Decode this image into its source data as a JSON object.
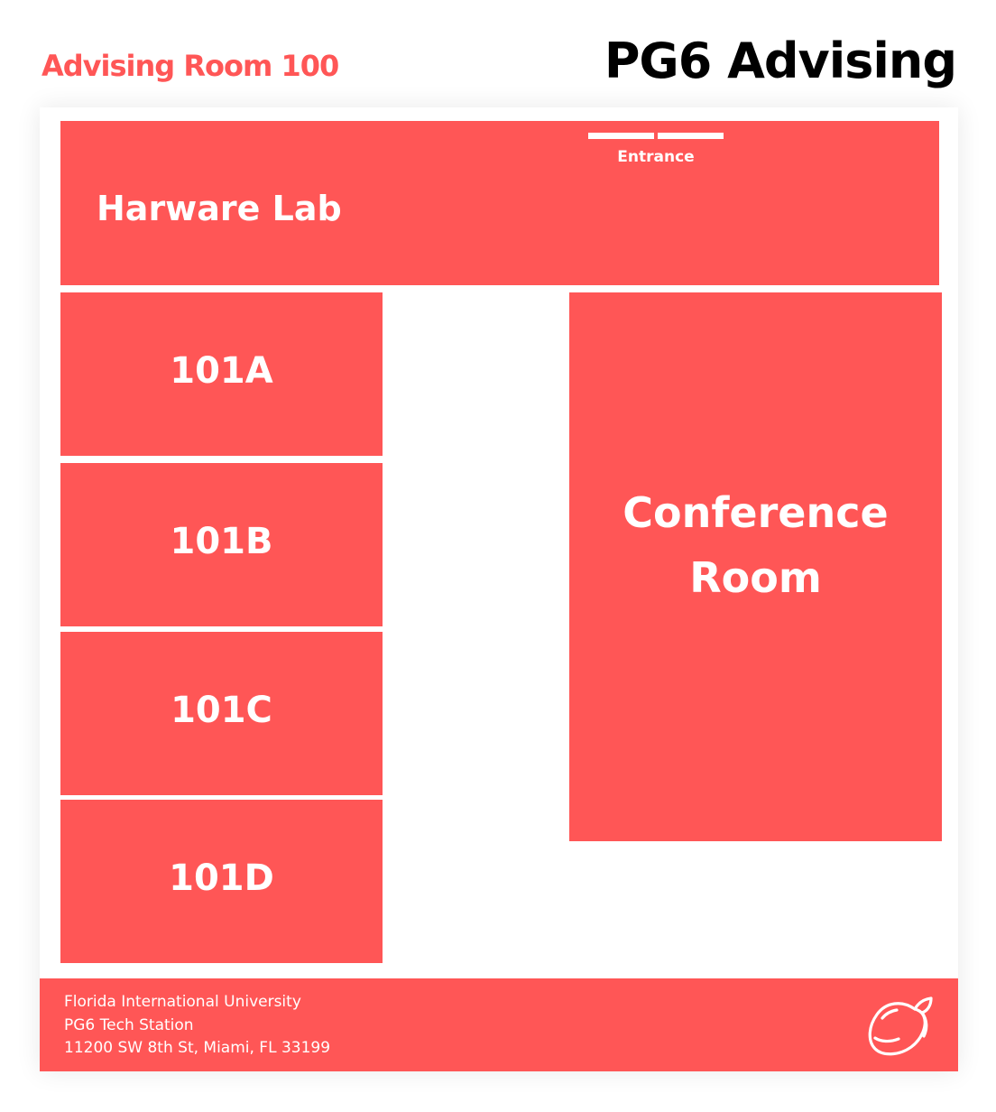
{
  "header": {
    "subtitle": "Advising Room 100",
    "title": "PG6 Advising"
  },
  "colors": {
    "accent": "#ff5656",
    "title": "#000000",
    "room_text": "#ffffff",
    "background": "#ffffff"
  },
  "floor_plan": {
    "hardware_lab": {
      "label": "Harware Lab",
      "entrance_label": "Entrance"
    },
    "offices": [
      {
        "label": "101A"
      },
      {
        "label": "101B"
      },
      {
        "label": "101C"
      },
      {
        "label": "101D"
      }
    ],
    "conference_room": {
      "label": "Conference Room"
    }
  },
  "footer": {
    "lines": [
      "Florida International University",
      "PG6 Tech Station",
      "11200 SW 8th St, Miami, FL 33199"
    ],
    "logo_icon": "mango-icon"
  }
}
